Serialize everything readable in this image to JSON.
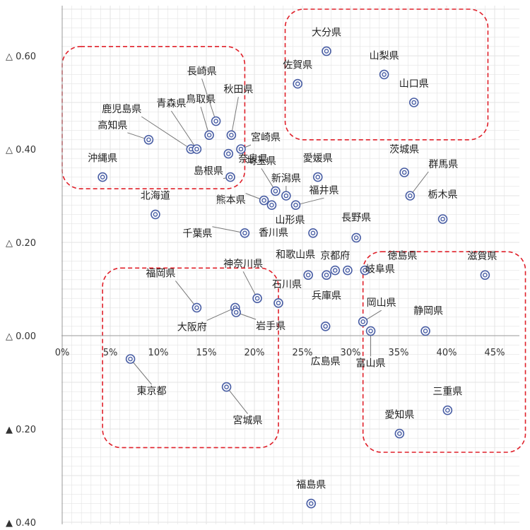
{
  "chart_data": {
    "type": "scatter",
    "title": "",
    "xlabel": "",
    "ylabel": "",
    "xlim": [
      0,
      0.46
    ],
    "ylim": [
      -0.4,
      0.7
    ],
    "x_ticks": [
      {
        "v": 0.0,
        "label": "0%"
      },
      {
        "v": 0.05,
        "label": "5%"
      },
      {
        "v": 0.1,
        "label": "10%"
      },
      {
        "v": 0.15,
        "label": "15%"
      },
      {
        "v": 0.2,
        "label": "20%"
      },
      {
        "v": 0.25,
        "label": "25%"
      },
      {
        "v": 0.3,
        "label": "30%"
      },
      {
        "v": 0.35,
        "label": "35%"
      },
      {
        "v": 0.4,
        "label": "40%"
      },
      {
        "v": 0.45,
        "label": "45%"
      }
    ],
    "y_ticks": [
      {
        "v": 0.6,
        "label": "△ 0.60"
      },
      {
        "v": 0.4,
        "label": "△ 0.40"
      },
      {
        "v": 0.2,
        "label": "△ 0.20"
      },
      {
        "v": 0.0,
        "label": "△ 0.00"
      },
      {
        "v": -0.2,
        "label": "▲ 0.20"
      },
      {
        "v": -0.4,
        "label": "▲ 0.40"
      }
    ],
    "grid": true,
    "colors": {
      "marker": "#4a5fa5",
      "leader": "#777777",
      "group_box": "#e0202a",
      "grid": "#e3e3e3",
      "axis": "#999999"
    },
    "points": [
      {
        "name": "大分県",
        "x": 0.275,
        "y": 0.61
      },
      {
        "name": "山梨県",
        "x": 0.335,
        "y": 0.56
      },
      {
        "name": "佐賀県",
        "x": 0.245,
        "y": 0.54
      },
      {
        "name": "山口県",
        "x": 0.366,
        "y": 0.5
      },
      {
        "name": "長崎県",
        "x": 0.16,
        "y": 0.46
      },
      {
        "name": "秋田県",
        "x": 0.176,
        "y": 0.43
      },
      {
        "name": "鳥取県",
        "x": 0.153,
        "y": 0.43
      },
      {
        "name": "宮崎県",
        "x": 0.186,
        "y": 0.4
      },
      {
        "name": "高知県",
        "x": 0.09,
        "y": 0.42
      },
      {
        "name": "鹿児島県",
        "x": 0.134,
        "y": 0.4
      },
      {
        "name": "青森県",
        "x": 0.14,
        "y": 0.4
      },
      {
        "name": "奈良県",
        "x": 0.173,
        "y": 0.39
      },
      {
        "name": "沖縄県",
        "x": 0.042,
        "y": 0.34
      },
      {
        "name": "島根県",
        "x": 0.175,
        "y": 0.34
      },
      {
        "name": "茨城県",
        "x": 0.356,
        "y": 0.35
      },
      {
        "name": "愛媛県",
        "x": 0.266,
        "y": 0.34
      },
      {
        "name": "新潟県",
        "x": 0.233,
        "y": 0.3
      },
      {
        "name": "埼玉県",
        "x": 0.222,
        "y": 0.31
      },
      {
        "name": "群馬県",
        "x": 0.362,
        "y": 0.3
      },
      {
        "name": "熊本県",
        "x": 0.21,
        "y": 0.29
      },
      {
        "name": "福井県",
        "x": 0.243,
        "y": 0.28
      },
      {
        "name": "山形県",
        "x": 0.218,
        "y": 0.28
      },
      {
        "name": "北海道",
        "x": 0.097,
        "y": 0.26
      },
      {
        "name": "栃木県",
        "x": 0.396,
        "y": 0.25
      },
      {
        "name": "香川県",
        "x": 0.261,
        "y": 0.22
      },
      {
        "name": "千葉県",
        "x": 0.19,
        "y": 0.22
      },
      {
        "name": "長野県",
        "x": 0.306,
        "y": 0.21
      },
      {
        "name": "岐阜県",
        "x": 0.297,
        "y": 0.14
      },
      {
        "name": "京都府",
        "x": 0.284,
        "y": 0.14
      },
      {
        "name": "和歌山県",
        "x": 0.256,
        "y": 0.13
      },
      {
        "name": "兵庫県",
        "x": 0.275,
        "y": 0.13
      },
      {
        "name": "徳島県",
        "x": 0.315,
        "y": 0.14
      },
      {
        "name": "滋賀県",
        "x": 0.44,
        "y": 0.13
      },
      {
        "name": "石川県",
        "x": 0.225,
        "y": 0.07
      },
      {
        "name": "神奈川県",
        "x": 0.203,
        "y": 0.08
      },
      {
        "name": "福岡県",
        "x": 0.14,
        "y": 0.06
      },
      {
        "name": "大阪府",
        "x": 0.18,
        "y": 0.06
      },
      {
        "name": "岩手県",
        "x": 0.181,
        "y": 0.05
      },
      {
        "name": "岡山県",
        "x": 0.313,
        "y": 0.03
      },
      {
        "name": "広島県",
        "x": 0.274,
        "y": 0.02
      },
      {
        "name": "富山県",
        "x": 0.321,
        "y": 0.01
      },
      {
        "name": "静岡県",
        "x": 0.378,
        "y": 0.01
      },
      {
        "name": "東京都",
        "x": 0.071,
        "y": -0.05
      },
      {
        "name": "宮城県",
        "x": 0.171,
        "y": -0.11
      },
      {
        "name": "三重県",
        "x": 0.401,
        "y": -0.16
      },
      {
        "name": "愛知県",
        "x": 0.351,
        "y": -0.21
      },
      {
        "name": "福島県",
        "x": 0.259,
        "y": -0.36
      }
    ]
  }
}
